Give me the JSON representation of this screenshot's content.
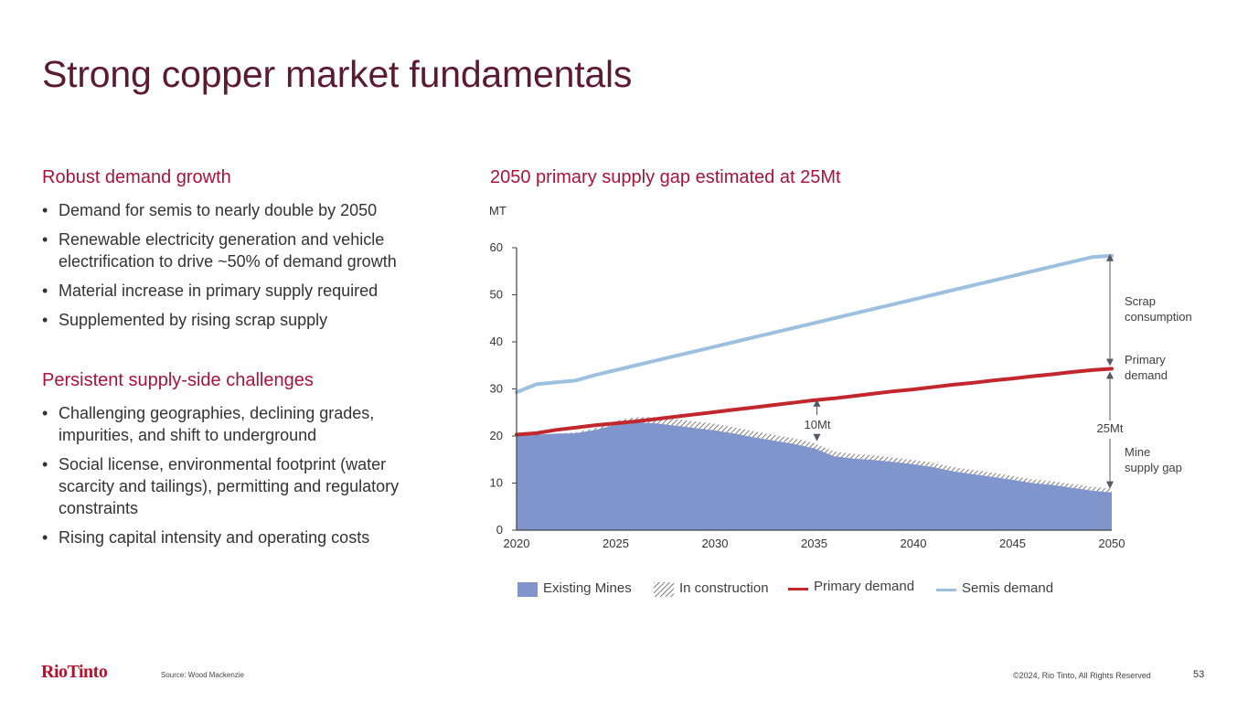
{
  "title": "Strong copper market fundamentals",
  "left": {
    "demand_heading": "Robust demand growth",
    "demand_bullets": [
      "Demand for semis to nearly double by 2050",
      "Renewable electricity generation and vehicle electrification to drive ~50% of demand growth",
      "Material increase in primary supply required",
      "Supplemented by rising scrap supply"
    ],
    "supply_heading": "Persistent supply-side challenges",
    "supply_bullets": [
      "Challenging geographies, declining grades, impurities, and shift to underground",
      "Social license, environmental footprint (water scarcity and tailings), permitting and regulatory constraints",
      "Rising capital intensity and operating costs"
    ]
  },
  "chart_heading": "2050 primary supply gap estimated at 25Mt",
  "chart_data": {
    "type": "area",
    "unit_label": "MT",
    "ylim": [
      0,
      60
    ],
    "yticks": [
      0,
      10,
      20,
      30,
      40,
      50,
      60
    ],
    "xlim": [
      2020,
      2050
    ],
    "xticks": [
      2020,
      2025,
      2030,
      2035,
      2040,
      2045,
      2050
    ],
    "x": [
      2020,
      2021,
      2022,
      2023,
      2024,
      2025,
      2026,
      2027,
      2028,
      2029,
      2030,
      2031,
      2032,
      2033,
      2034,
      2035,
      2036,
      2037,
      2038,
      2039,
      2040,
      2041,
      2042,
      2043,
      2044,
      2045,
      2046,
      2047,
      2048,
      2049,
      2050
    ],
    "series": [
      {
        "name": "Existing Mines",
        "kind": "area",
        "color": "#7f95cb",
        "values": [
          20.2,
          20.3,
          20.5,
          20.6,
          21.3,
          22.4,
          22.9,
          22.7,
          22.2,
          21.7,
          21.2,
          20.5,
          19.7,
          19.0,
          18.3,
          17.4,
          15.7,
          15.2,
          14.9,
          14.5,
          14.0,
          13.4,
          12.5,
          11.9,
          11.3,
          10.7,
          10.0,
          9.6,
          9.0,
          8.4,
          8.0
        ]
      },
      {
        "name": "In construction",
        "kind": "hatched-area",
        "color": "#444444",
        "values": [
          0,
          0,
          0,
          0.2,
          0.4,
          0.8,
          1.1,
          1.3,
          1.4,
          1.4,
          1.4,
          1.3,
          1.3,
          1.2,
          1.2,
          1.1,
          1.0,
          1.0,
          1.0,
          0.9,
          0.9,
          0.9,
          0.9,
          0.9,
          0.9,
          0.8,
          0.8,
          0.8,
          0.8,
          0.8,
          0.8
        ]
      },
      {
        "name": "Primary demand",
        "kind": "line",
        "color": "#c1272d",
        "values": [
          20.3,
          20.6,
          21.3,
          21.8,
          22.3,
          22.7,
          23.1,
          23.6,
          24.1,
          24.6,
          25.1,
          25.6,
          26.1,
          26.6,
          27.1,
          27.6,
          28.0,
          28.5,
          29.0,
          29.5,
          29.9,
          30.4,
          30.9,
          31.3,
          31.8,
          32.2,
          32.7,
          33.1,
          33.6,
          34.0,
          34.3
        ]
      },
      {
        "name": "Semis demand",
        "kind": "line",
        "color": "#9cc0e0",
        "values": [
          29.3,
          31.0,
          31.4,
          31.8,
          33.0,
          34.0,
          35.0,
          36.0,
          37.0,
          38.0,
          39.0,
          40.0,
          41.0,
          42.0,
          43.0,
          44.0,
          45.0,
          46.0,
          47.0,
          48.0,
          49.0,
          50.0,
          51.0,
          52.0,
          53.0,
          54.0,
          55.0,
          56.0,
          57.0,
          58.0,
          58.3
        ]
      }
    ],
    "annotations": [
      {
        "label": "10Mt",
        "x": 2035,
        "from": 18.5,
        "to": 27.6
      },
      {
        "label": "25Mt",
        "x": 2050,
        "from": 8.8,
        "to": 34.3
      },
      {
        "label": "Scrap consumption",
        "x": 2050,
        "from": 34.3,
        "to": 58.3
      },
      {
        "label": "Primary demand",
        "x": 2050,
        "value": 34.3
      },
      {
        "label": "Mine supply gap",
        "x": 2050,
        "value": 21
      }
    ]
  },
  "side_labels": {
    "scrap": [
      "Scrap",
      "consumption"
    ],
    "primary": [
      "Primary",
      "demand"
    ],
    "gap": [
      "Mine",
      "supply gap"
    ],
    "gap_value": "25Mt",
    "mid_value": "10Mt"
  },
  "legend": [
    {
      "label": "Existing Mines",
      "type": "fill",
      "color": "#7f95cb"
    },
    {
      "label": "In construction",
      "type": "hatch",
      "color": "#444444"
    },
    {
      "label": "Primary demand",
      "type": "line",
      "color": "#c1272d"
    },
    {
      "label": "Semis demand",
      "type": "line",
      "color": "#9cc0e0"
    }
  ],
  "footer": {
    "logo": "RioTinto",
    "source": "Source: Wood Mackenzie",
    "copyright": "©2024, Rio Tinto, All Rights Reserved",
    "page_number": "53"
  },
  "colors": {
    "title": "#5c1a30",
    "accent": "#a8133a",
    "axis": "#444444",
    "arrow": "#555b66"
  }
}
